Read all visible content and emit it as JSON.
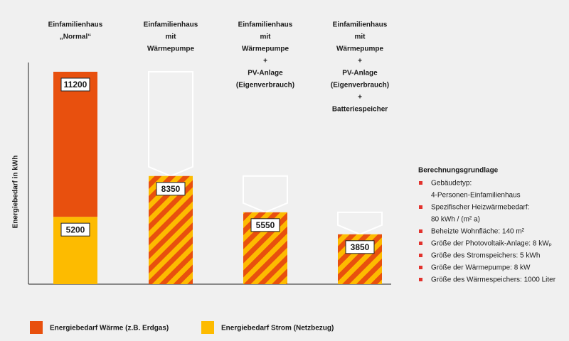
{
  "chart_data": {
    "type": "bar",
    "categories": [
      [
        "Einfamilienhaus",
        "„Normal“"
      ],
      [
        "Einfamilienhaus",
        "mit",
        "Wärmepumpe"
      ],
      [
        "Einfamilienhaus",
        "mit",
        "Wärmepumpe",
        "+",
        "PV-Anlage",
        "(Eigenverbrauch)"
      ],
      [
        "Einfamilienhaus",
        "mit",
        "Wärmepumpe",
        "+",
        "PV-Anlage",
        "(Eigenverbrauch)",
        "+",
        "Batteriespeicher"
      ]
    ],
    "y_label": "Energiebedarf in kWh",
    "series": [
      {
        "name": "Energiebedarf Wärme (z.B. Erdgas)",
        "color": "#e8500e",
        "values": [
          11200,
          null,
          null,
          null
        ]
      },
      {
        "name": "Energiebedarf Strom (Netzbezug)",
        "color": "#fdbb00",
        "values": [
          5200,
          null,
          null,
          null
        ]
      }
    ],
    "combined_values": [
      null,
      8350,
      5550,
      3850
    ],
    "notes_title": "Berechnungsgrundlage",
    "notes": [
      [
        "Gebäudetyp:",
        "4-Personen-Einfamilienhaus"
      ],
      [
        "Spezifischer Heizwärmebedarf:",
        "80 kWh / (m² a)"
      ],
      [
        "Beheizte Wohnfläche: 140 m²"
      ],
      [
        "Größe der Photovoltaik-Anlage: 8 kWₚ"
      ],
      [
        "Größe des Stromspeichers: 5 kWh"
      ],
      [
        "Größe der Wärmepumpe: 8 kW"
      ],
      [
        "Größe des Wärmespeichers: 1000 Liter"
      ]
    ]
  }
}
